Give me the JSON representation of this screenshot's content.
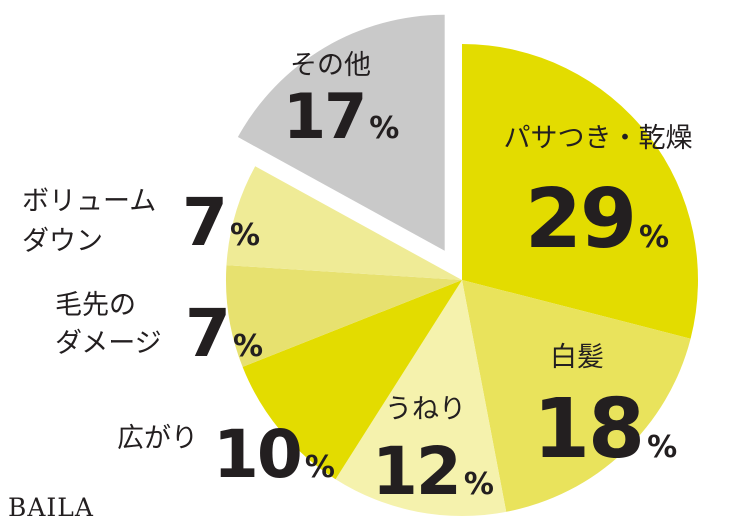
{
  "brand": "BAILA",
  "chart_data": {
    "type": "pie",
    "slices": [
      {
        "label": "パサつき・乾燥",
        "value": 29,
        "color": "#e3dc00"
      },
      {
        "label": "白髪",
        "value": 18,
        "color": "#e9e35c"
      },
      {
        "label": "うねり",
        "value": 12,
        "color": "#f5f2ad"
      },
      {
        "label": "広がり",
        "value": 10,
        "color": "#e3dc00"
      },
      {
        "label": "毛先のダメージ",
        "value": 7,
        "color": "#e7e16f"
      },
      {
        "label": "ボリュームダウン",
        "value": 7,
        "color": "#efeb96"
      },
      {
        "label": "その他",
        "value": 17,
        "color": "#c9c9c9",
        "exploded": true
      }
    ],
    "value_suffix": "%",
    "title": "",
    "legend": "none"
  }
}
